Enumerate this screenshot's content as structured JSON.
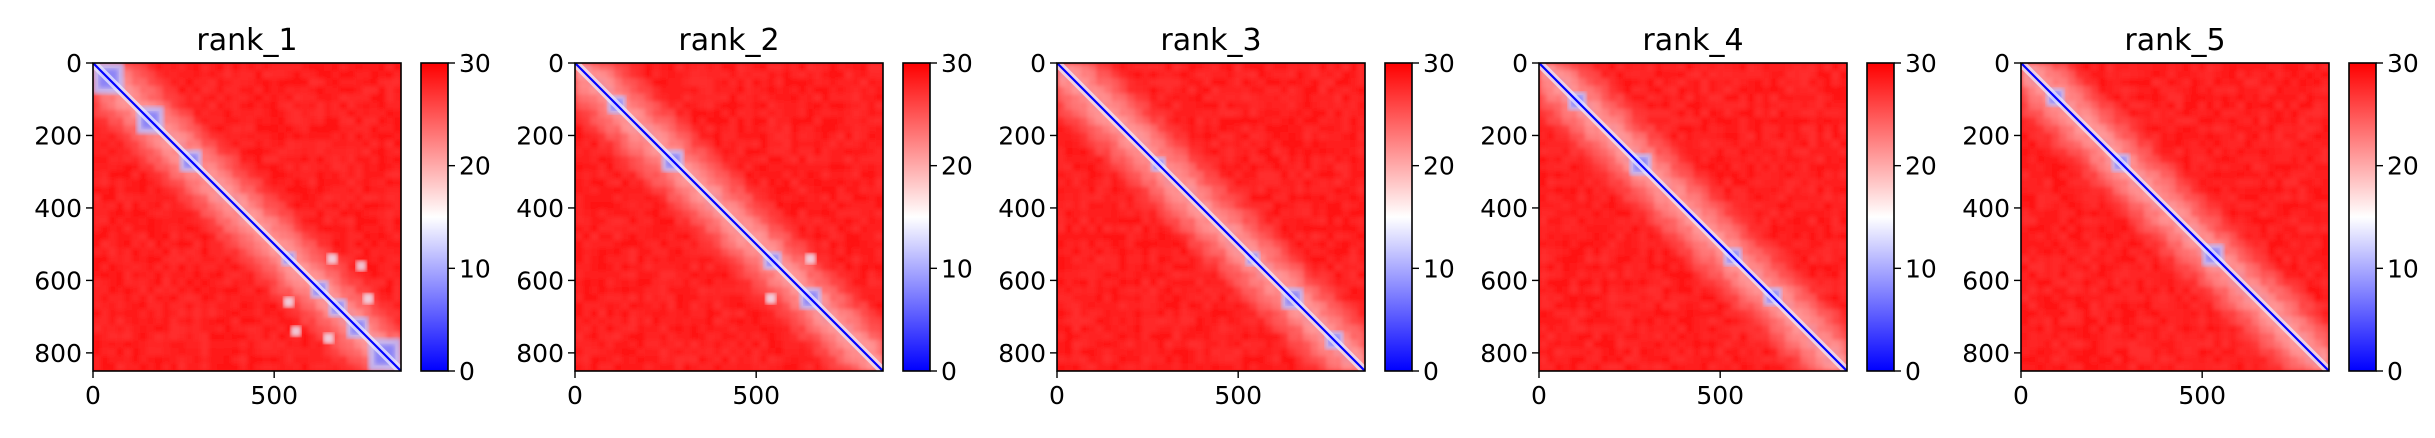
{
  "chart_data": [
    {
      "type": "heatmap",
      "title": "rank_1",
      "xlabel": "",
      "ylabel": "",
      "matrix_size": 850,
      "xlim": [
        0,
        850
      ],
      "ylim": [
        850,
        0
      ],
      "x_ticks": [
        "0",
        "500"
      ],
      "y_ticks": [
        "0",
        "200",
        "400",
        "600",
        "800"
      ],
      "colorbar": {
        "vmin": 0,
        "vmax": 30,
        "ticks": [
          "0",
          "10",
          "20",
          "30"
        ],
        "colormap": "bwr"
      },
      "diagonal_domains": [
        [
          0,
          85
        ],
        [
          120,
          195
        ],
        [
          240,
          300
        ],
        [
          520,
          560
        ],
        [
          600,
          650
        ],
        [
          650,
          700
        ],
        [
          700,
          760
        ],
        [
          760,
          850
        ]
      ],
      "off_diagonal_features": [
        [
          540,
          660
        ],
        [
          650,
          760
        ],
        [
          560,
          740
        ]
      ],
      "background_level": 29
    },
    {
      "type": "heatmap",
      "title": "rank_2",
      "xlabel": "",
      "ylabel": "",
      "matrix_size": 850,
      "xlim": [
        0,
        850
      ],
      "ylim": [
        850,
        0
      ],
      "x_ticks": [
        "0",
        "500"
      ],
      "y_ticks": [
        "0",
        "200",
        "400",
        "600",
        "800"
      ],
      "colorbar": {
        "vmin": 0,
        "vmax": 30,
        "ticks": [
          "0",
          "10",
          "20",
          "30"
        ],
        "colormap": "bwr"
      },
      "diagonal_domains": [
        [
          90,
          140
        ],
        [
          240,
          300
        ],
        [
          520,
          570
        ],
        [
          620,
          680
        ]
      ],
      "off_diagonal_features": [
        [
          540,
          650
        ]
      ],
      "background_level": 29
    },
    {
      "type": "heatmap",
      "title": "rank_3",
      "xlabel": "",
      "ylabel": "",
      "matrix_size": 850,
      "xlim": [
        0,
        850
      ],
      "ylim": [
        850,
        0
      ],
      "x_ticks": [
        "0",
        "500"
      ],
      "y_ticks": [
        "0",
        "200",
        "400",
        "600",
        "800"
      ],
      "colorbar": {
        "vmin": 0,
        "vmax": 30,
        "ticks": [
          "0",
          "10",
          "20",
          "30"
        ],
        "colormap": "bwr"
      },
      "diagonal_domains": [
        [
          260,
          300
        ],
        [
          520,
          560
        ],
        [
          620,
          680
        ],
        [
          740,
          790
        ]
      ],
      "off_diagonal_features": [],
      "background_level": 29
    },
    {
      "type": "heatmap",
      "title": "rank_4",
      "xlabel": "",
      "ylabel": "",
      "matrix_size": 850,
      "xlim": [
        0,
        850
      ],
      "ylim": [
        850,
        0
      ],
      "x_ticks": [
        "0",
        "500"
      ],
      "y_ticks": [
        "0",
        "200",
        "400",
        "600",
        "800"
      ],
      "colorbar": {
        "vmin": 0,
        "vmax": 30,
        "ticks": [
          "0",
          "10",
          "20",
          "30"
        ],
        "colormap": "bwr"
      },
      "diagonal_domains": [
        [
          80,
          130
        ],
        [
          250,
          310
        ],
        [
          510,
          560
        ],
        [
          620,
          670
        ]
      ],
      "off_diagonal_features": [],
      "background_level": 29
    },
    {
      "type": "heatmap",
      "title": "rank_5",
      "xlabel": "",
      "ylabel": "",
      "matrix_size": 850,
      "xlim": [
        0,
        850
      ],
      "ylim": [
        850,
        0
      ],
      "x_ticks": [
        "0",
        "500"
      ],
      "y_ticks": [
        "0",
        "200",
        "400",
        "600",
        "800"
      ],
      "colorbar": {
        "vmin": 0,
        "vmax": 30,
        "ticks": [
          "0",
          "10",
          "20",
          "30"
        ],
        "colormap": "bwr"
      },
      "diagonal_domains": [
        [
          70,
          120
        ],
        [
          250,
          300
        ],
        [
          500,
          560
        ]
      ],
      "off_diagonal_features": [],
      "background_level": 29
    }
  ]
}
